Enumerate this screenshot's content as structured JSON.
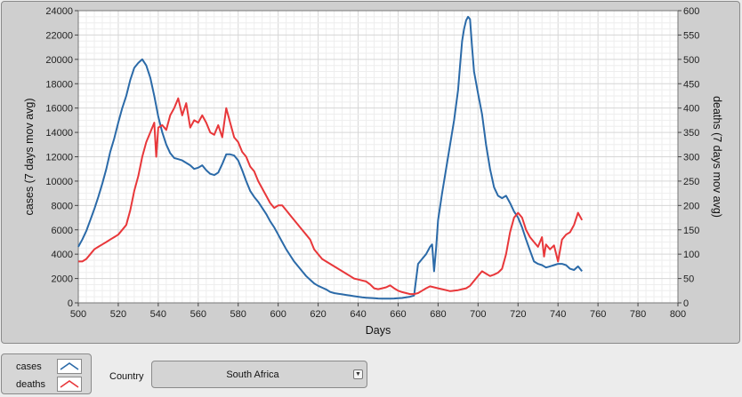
{
  "chart_data": {
    "type": "line",
    "xlabel": "Days",
    "ylabel_left": "cases  (7 days mov avg)",
    "ylabel_right": "deaths  (7 days mov avg)",
    "xlim": [
      500,
      800
    ],
    "ylim_left": [
      0,
      24000
    ],
    "ylim_right": [
      0,
      600
    ],
    "x_ticks": [
      500,
      520,
      540,
      560,
      580,
      600,
      620,
      640,
      660,
      680,
      700,
      720,
      740,
      760,
      780,
      800
    ],
    "y_left_ticks": [
      0,
      2000,
      4000,
      6000,
      8000,
      10000,
      12000,
      14000,
      16000,
      18000,
      20000,
      22000,
      24000
    ],
    "y_right_ticks": [
      0,
      50,
      100,
      150,
      200,
      250,
      300,
      350,
      400,
      450,
      500,
      550,
      600
    ],
    "grid": true,
    "series": [
      {
        "name": "cases",
        "axis": "left",
        "color": "#2b6aa8",
        "points": [
          [
            500,
            4600
          ],
          [
            502,
            5200
          ],
          [
            504,
            5900
          ],
          [
            506,
            6800
          ],
          [
            508,
            7700
          ],
          [
            510,
            8700
          ],
          [
            512,
            9800
          ],
          [
            514,
            11000
          ],
          [
            516,
            12400
          ],
          [
            518,
            13500
          ],
          [
            520,
            14800
          ],
          [
            522,
            16000
          ],
          [
            524,
            17000
          ],
          [
            526,
            18300
          ],
          [
            528,
            19300
          ],
          [
            530,
            19700
          ],
          [
            532,
            20000
          ],
          [
            534,
            19500
          ],
          [
            536,
            18500
          ],
          [
            538,
            17000
          ],
          [
            540,
            15300
          ],
          [
            542,
            14000
          ],
          [
            544,
            13000
          ],
          [
            546,
            12300
          ],
          [
            548,
            11900
          ],
          [
            550,
            11800
          ],
          [
            552,
            11700
          ],
          [
            554,
            11500
          ],
          [
            556,
            11300
          ],
          [
            558,
            11000
          ],
          [
            560,
            11100
          ],
          [
            562,
            11300
          ],
          [
            564,
            10900
          ],
          [
            566,
            10600
          ],
          [
            568,
            10500
          ],
          [
            570,
            10700
          ],
          [
            572,
            11400
          ],
          [
            574,
            12200
          ],
          [
            576,
            12200
          ],
          [
            578,
            12100
          ],
          [
            580,
            11700
          ],
          [
            582,
            10900
          ],
          [
            584,
            10000
          ],
          [
            586,
            9200
          ],
          [
            588,
            8700
          ],
          [
            590,
            8300
          ],
          [
            592,
            7800
          ],
          [
            594,
            7300
          ],
          [
            596,
            6700
          ],
          [
            598,
            6200
          ],
          [
            600,
            5600
          ],
          [
            602,
            5000
          ],
          [
            604,
            4400
          ],
          [
            606,
            3900
          ],
          [
            608,
            3400
          ],
          [
            610,
            3000
          ],
          [
            612,
            2600
          ],
          [
            614,
            2200
          ],
          [
            616,
            1900
          ],
          [
            618,
            1600
          ],
          [
            620,
            1400
          ],
          [
            622,
            1250
          ],
          [
            624,
            1100
          ],
          [
            626,
            900
          ],
          [
            628,
            800
          ],
          [
            630,
            750
          ],
          [
            632,
            700
          ],
          [
            634,
            650
          ],
          [
            636,
            600
          ],
          [
            638,
            550
          ],
          [
            640,
            500
          ],
          [
            642,
            450
          ],
          [
            644,
            420
          ],
          [
            646,
            400
          ],
          [
            648,
            380
          ],
          [
            650,
            360
          ],
          [
            652,
            350
          ],
          [
            654,
            350
          ],
          [
            656,
            350
          ],
          [
            658,
            360
          ],
          [
            660,
            380
          ],
          [
            662,
            400
          ],
          [
            664,
            450
          ],
          [
            666,
            500
          ],
          [
            668,
            600
          ],
          [
            670,
            3200
          ],
          [
            672,
            3600
          ],
          [
            674,
            4000
          ],
          [
            676,
            4600
          ],
          [
            677,
            4800
          ],
          [
            678,
            2600
          ],
          [
            679,
            4500
          ],
          [
            680,
            6800
          ],
          [
            682,
            9000
          ],
          [
            684,
            11000
          ],
          [
            686,
            13000
          ],
          [
            688,
            15000
          ],
          [
            690,
            17500
          ],
          [
            691,
            19500
          ],
          [
            692,
            21500
          ],
          [
            693,
            22500
          ],
          [
            694,
            23200
          ],
          [
            695,
            23500
          ],
          [
            696,
            23300
          ],
          [
            697,
            21000
          ],
          [
            698,
            19000
          ],
          [
            700,
            17200
          ],
          [
            702,
            15500
          ],
          [
            704,
            13000
          ],
          [
            706,
            11000
          ],
          [
            708,
            9500
          ],
          [
            710,
            8800
          ],
          [
            712,
            8600
          ],
          [
            714,
            8800
          ],
          [
            716,
            8200
          ],
          [
            718,
            7500
          ],
          [
            720,
            7000
          ],
          [
            722,
            6200
          ],
          [
            724,
            5200
          ],
          [
            726,
            4300
          ],
          [
            728,
            3400
          ],
          [
            730,
            3200
          ],
          [
            732,
            3100
          ],
          [
            734,
            2900
          ],
          [
            736,
            3000
          ],
          [
            738,
            3100
          ],
          [
            740,
            3200
          ],
          [
            742,
            3200
          ],
          [
            744,
            3100
          ],
          [
            746,
            2800
          ],
          [
            748,
            2700
          ],
          [
            750,
            3000
          ],
          [
            752,
            2600
          ]
        ]
      },
      {
        "name": "deaths",
        "axis": "right",
        "color": "#e8373a",
        "points": [
          [
            500,
            85
          ],
          [
            502,
            85
          ],
          [
            504,
            90
          ],
          [
            506,
            100
          ],
          [
            508,
            110
          ],
          [
            510,
            115
          ],
          [
            512,
            120
          ],
          [
            514,
            125
          ],
          [
            516,
            130
          ],
          [
            518,
            135
          ],
          [
            520,
            140
          ],
          [
            522,
            150
          ],
          [
            524,
            160
          ],
          [
            526,
            190
          ],
          [
            528,
            230
          ],
          [
            530,
            260
          ],
          [
            532,
            300
          ],
          [
            534,
            330
          ],
          [
            536,
            350
          ],
          [
            538,
            370
          ],
          [
            539,
            300
          ],
          [
            540,
            360
          ],
          [
            542,
            365
          ],
          [
            544,
            355
          ],
          [
            546,
            385
          ],
          [
            548,
            400
          ],
          [
            550,
            420
          ],
          [
            552,
            385
          ],
          [
            554,
            410
          ],
          [
            556,
            360
          ],
          [
            558,
            375
          ],
          [
            560,
            370
          ],
          [
            562,
            385
          ],
          [
            564,
            370
          ],
          [
            566,
            350
          ],
          [
            568,
            345
          ],
          [
            570,
            365
          ],
          [
            572,
            340
          ],
          [
            574,
            400
          ],
          [
            576,
            370
          ],
          [
            578,
            340
          ],
          [
            580,
            330
          ],
          [
            582,
            310
          ],
          [
            584,
            300
          ],
          [
            586,
            280
          ],
          [
            588,
            270
          ],
          [
            590,
            250
          ],
          [
            592,
            235
          ],
          [
            594,
            220
          ],
          [
            596,
            205
          ],
          [
            598,
            195
          ],
          [
            600,
            200
          ],
          [
            602,
            200
          ],
          [
            604,
            190
          ],
          [
            606,
            180
          ],
          [
            608,
            170
          ],
          [
            610,
            160
          ],
          [
            612,
            150
          ],
          [
            614,
            140
          ],
          [
            616,
            130
          ],
          [
            618,
            110
          ],
          [
            620,
            100
          ],
          [
            622,
            90
          ],
          [
            624,
            85
          ],
          [
            626,
            80
          ],
          [
            628,
            75
          ],
          [
            630,
            70
          ],
          [
            632,
            65
          ],
          [
            634,
            60
          ],
          [
            636,
            55
          ],
          [
            638,
            50
          ],
          [
            640,
            48
          ],
          [
            642,
            46
          ],
          [
            644,
            44
          ],
          [
            646,
            38
          ],
          [
            648,
            30
          ],
          [
            650,
            28
          ],
          [
            652,
            30
          ],
          [
            654,
            32
          ],
          [
            656,
            36
          ],
          [
            658,
            30
          ],
          [
            660,
            25
          ],
          [
            662,
            22
          ],
          [
            664,
            20
          ],
          [
            666,
            18
          ],
          [
            668,
            18
          ],
          [
            670,
            20
          ],
          [
            672,
            25
          ],
          [
            674,
            30
          ],
          [
            676,
            34
          ],
          [
            678,
            32
          ],
          [
            680,
            30
          ],
          [
            682,
            28
          ],
          [
            684,
            26
          ],
          [
            686,
            24
          ],
          [
            688,
            25
          ],
          [
            690,
            26
          ],
          [
            692,
            28
          ],
          [
            694,
            30
          ],
          [
            696,
            35
          ],
          [
            698,
            45
          ],
          [
            700,
            55
          ],
          [
            702,
            65
          ],
          [
            704,
            60
          ],
          [
            706,
            55
          ],
          [
            708,
            58
          ],
          [
            710,
            62
          ],
          [
            712,
            70
          ],
          [
            714,
            100
          ],
          [
            716,
            145
          ],
          [
            718,
            175
          ],
          [
            720,
            185
          ],
          [
            722,
            175
          ],
          [
            724,
            150
          ],
          [
            726,
            135
          ],
          [
            728,
            125
          ],
          [
            730,
            115
          ],
          [
            732,
            135
          ],
          [
            733,
            95
          ],
          [
            734,
            120
          ],
          [
            736,
            110
          ],
          [
            738,
            118
          ],
          [
            740,
            85
          ],
          [
            742,
            130
          ],
          [
            744,
            140
          ],
          [
            746,
            145
          ],
          [
            748,
            160
          ],
          [
            750,
            185
          ],
          [
            752,
            170
          ]
        ]
      }
    ]
  },
  "legend": {
    "items": [
      {
        "label": "cases",
        "color": "#2b6aa8"
      },
      {
        "label": "deaths",
        "color": "#e8373a"
      }
    ]
  },
  "controls": {
    "country_label": "Country",
    "country_value": "South Africa",
    "dropdown_icon": "chevron-down-icon"
  }
}
